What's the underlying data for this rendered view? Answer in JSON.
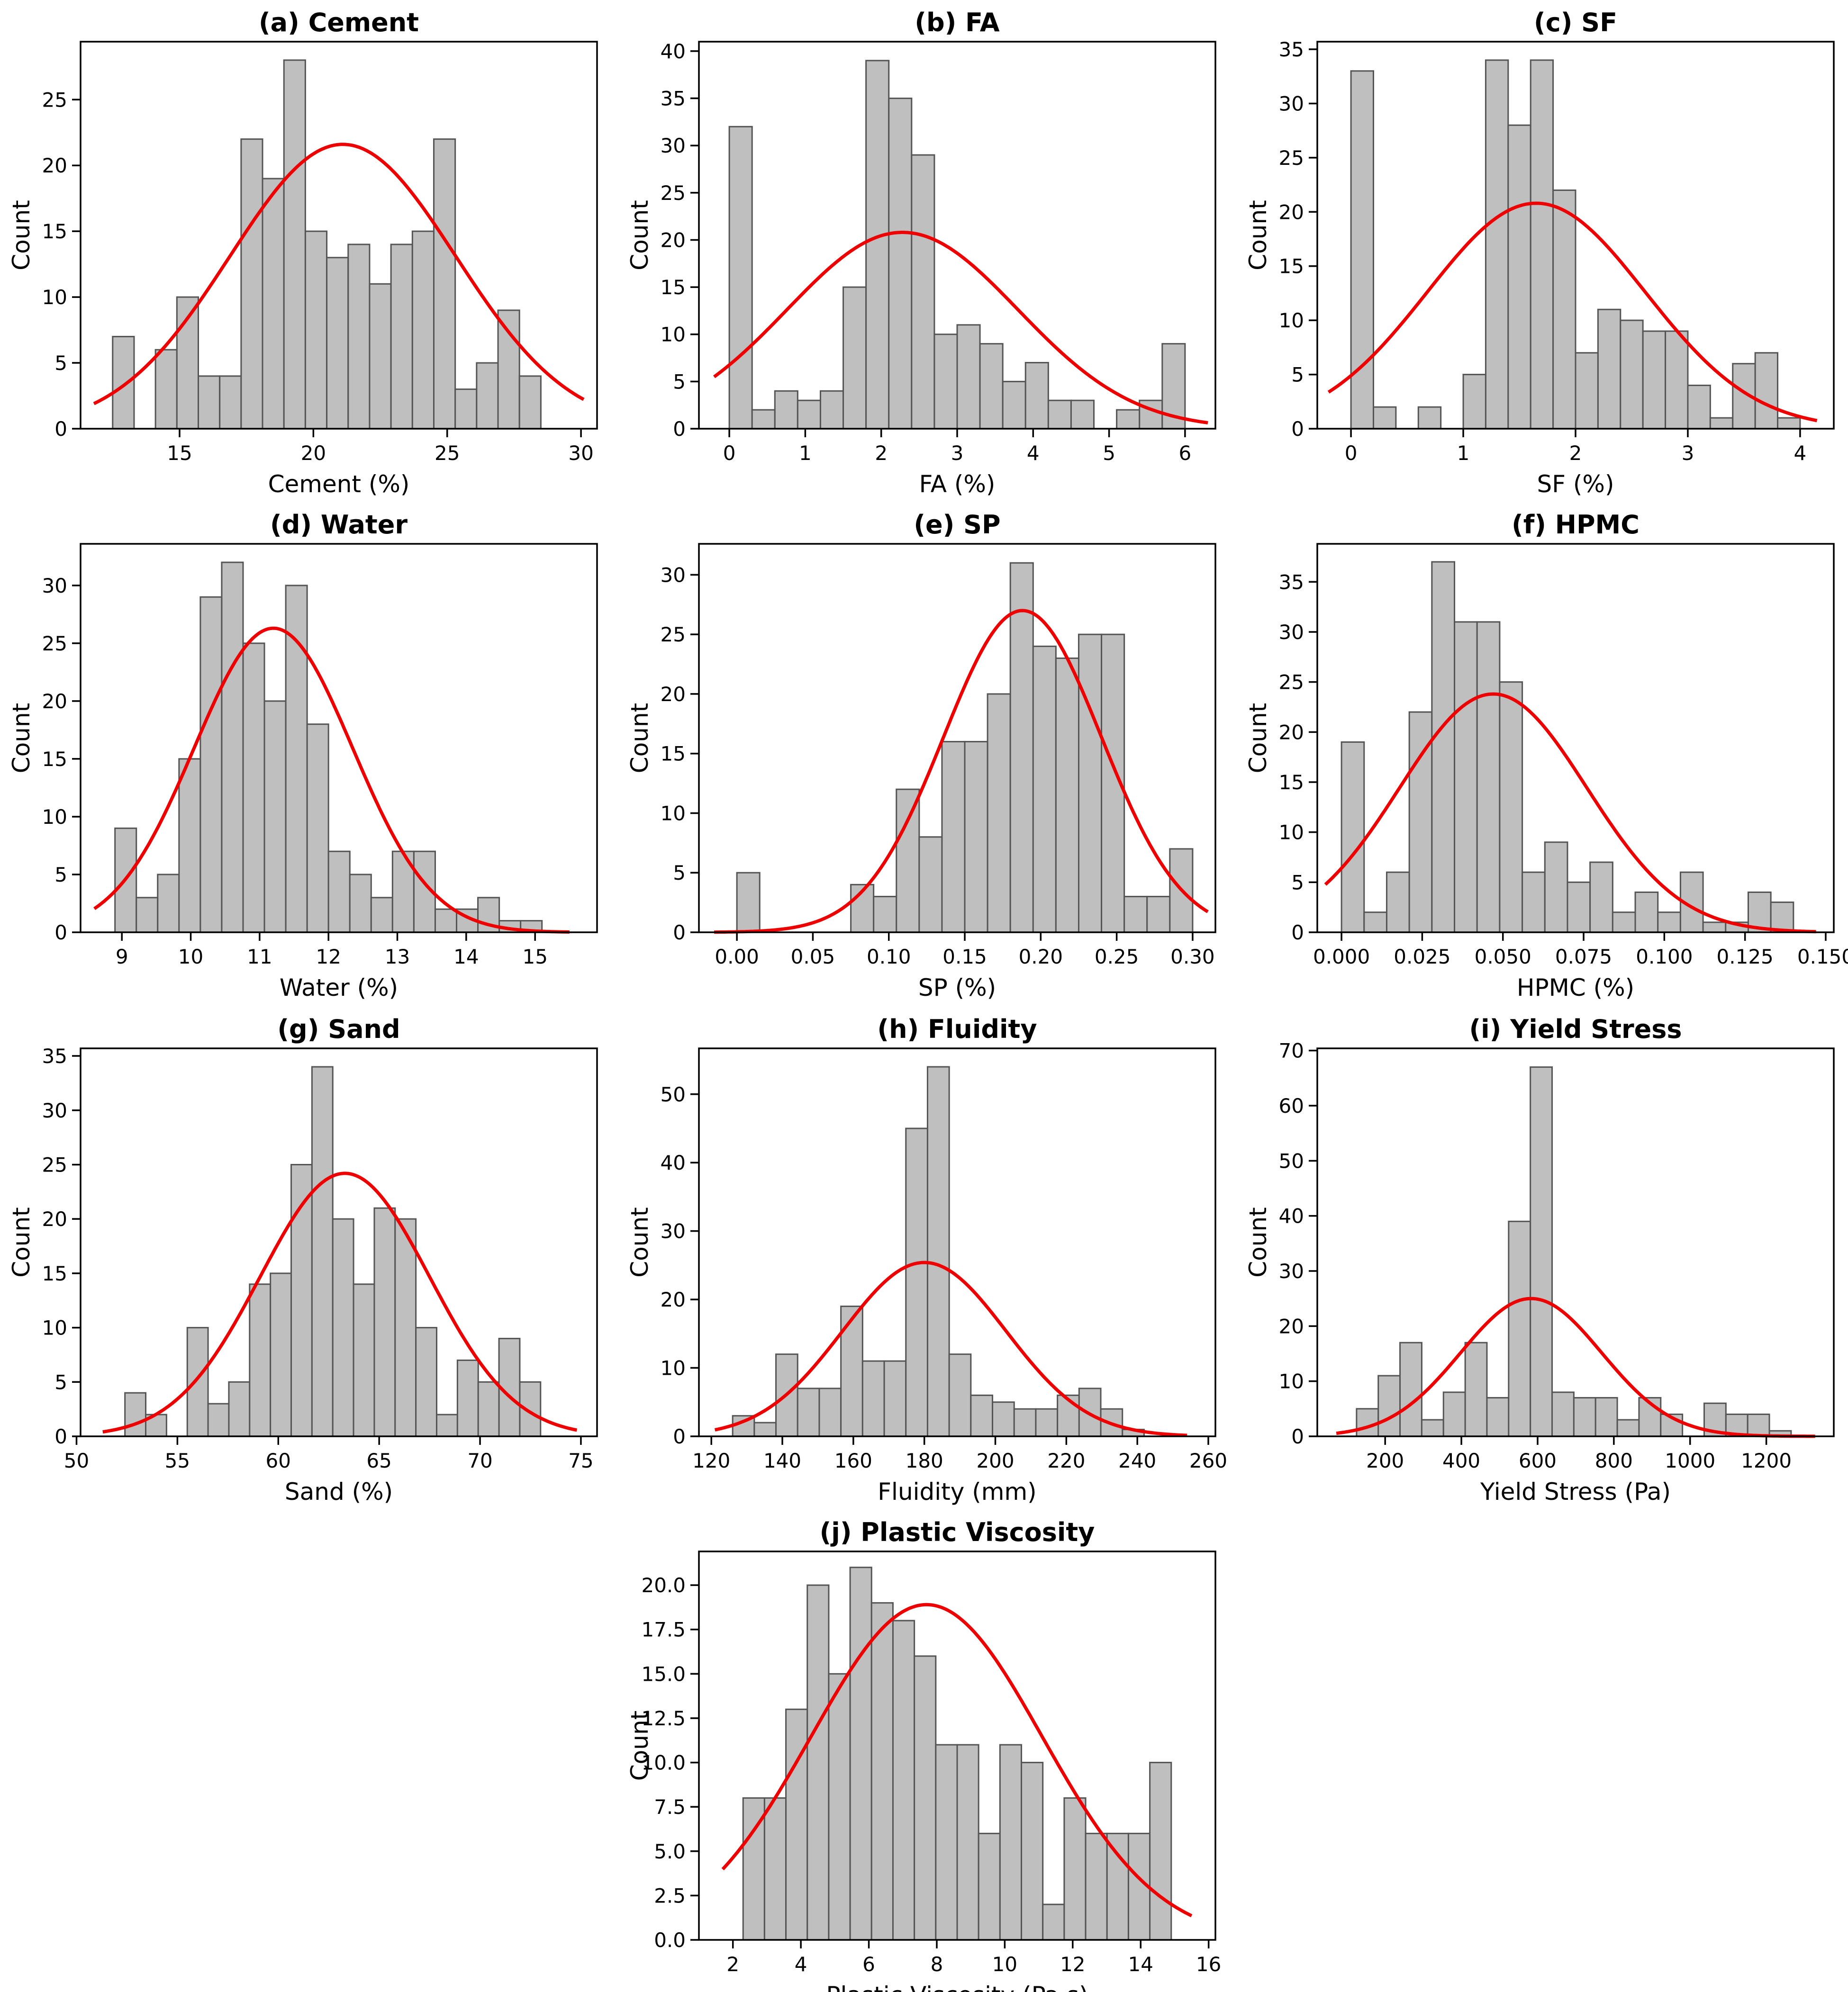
{
  "figure": {
    "colors": {
      "bar_fill": "#bfbfbf",
      "bar_edge": "#555555",
      "curve": "#ee0000",
      "axes": "#000000"
    },
    "ylabel_common": "Count"
  },
  "chart_data": [
    {
      "type": "bar",
      "title": "(a) Cement",
      "xlabel": "Cement (%)",
      "ylabel": "Count",
      "bin_start": 12.5,
      "bin_width": 0.8,
      "counts": [
        7,
        0,
        6,
        10,
        4,
        4,
        22,
        19,
        28,
        15,
        13,
        14,
        11,
        14,
        15,
        22,
        3,
        5,
        9,
        4
      ],
      "xlim": [
        11.3,
        30.6
      ],
      "ylim": [
        0,
        29.4
      ],
      "xticks": [
        15,
        20,
        25,
        30
      ],
      "xtick_labels": [
        "15",
        "20",
        "25",
        "30"
      ],
      "yticks": [
        0,
        5,
        10,
        15,
        20,
        25
      ],
      "ytick_labels": [
        "0",
        "5",
        "10",
        "15",
        "20",
        "25"
      ],
      "fit": {
        "mean": 21.1,
        "sd": 4.22,
        "peak": 21.6,
        "range": [
          11.8,
          30.1
        ]
      }
    },
    {
      "type": "bar",
      "title": "(b) FA",
      "xlabel": "FA (%)",
      "ylabel": "Count",
      "bin_start": 0.0,
      "bin_width": 0.3,
      "counts": [
        32,
        2,
        4,
        3,
        4,
        15,
        39,
        35,
        29,
        10,
        11,
        9,
        5,
        7,
        3,
        3,
        0,
        2,
        3,
        9
      ],
      "xlim": [
        -0.4,
        6.4
      ],
      "ylim": [
        0,
        41
      ],
      "xticks": [
        0,
        1,
        2,
        3,
        4,
        5,
        6
      ],
      "xtick_labels": [
        "0",
        "1",
        "2",
        "3",
        "4",
        "5",
        "6"
      ],
      "yticks": [
        0,
        5,
        10,
        15,
        20,
        25,
        30,
        35,
        40
      ],
      "ytick_labels": [
        "0",
        "5",
        "10",
        "15",
        "20",
        "25",
        "30",
        "35",
        "40"
      ],
      "fit": {
        "mean": 2.28,
        "sd": 1.52,
        "peak": 20.8,
        "range": [
          -0.2,
          6.3
        ]
      }
    },
    {
      "type": "bar",
      "title": "(c) SF",
      "xlabel": "SF (%)",
      "ylabel": "Count",
      "bin_start": 0.0,
      "bin_width": 0.2,
      "counts": [
        33,
        2,
        0,
        2,
        0,
        5,
        34,
        28,
        34,
        22,
        7,
        11,
        10,
        9,
        9,
        4,
        1,
        6,
        7,
        1
      ],
      "xlim": [
        -0.3,
        4.3
      ],
      "ylim": [
        0,
        35.7
      ],
      "xticks": [
        0,
        1,
        2,
        3,
        4
      ],
      "xtick_labels": [
        "0",
        "1",
        "2",
        "3",
        "4"
      ],
      "yticks": [
        0,
        5,
        10,
        15,
        20,
        25,
        30,
        35
      ],
      "ytick_labels": [
        "0",
        "5",
        "10",
        "15",
        "20",
        "25",
        "30",
        "35"
      ],
      "fit": {
        "mean": 1.65,
        "sd": 0.97,
        "peak": 20.8,
        "range": [
          -0.2,
          4.15
        ]
      }
    },
    {
      "type": "bar",
      "title": "(d) Water",
      "xlabel": "Water (%)",
      "ylabel": "Count",
      "bin_start": 8.9,
      "bin_width": 0.31,
      "counts": [
        9,
        3,
        5,
        15,
        29,
        32,
        25,
        20,
        30,
        18,
        7,
        5,
        3,
        7,
        7,
        2,
        2,
        3,
        1,
        1
      ],
      "xlim": [
        8.4,
        15.9
      ],
      "ylim": [
        0,
        33.6
      ],
      "xticks": [
        9,
        10,
        11,
        12,
        13,
        14,
        15
      ],
      "xtick_labels": [
        "9",
        "10",
        "11",
        "12",
        "13",
        "14",
        "15"
      ],
      "yticks": [
        0,
        5,
        10,
        15,
        20,
        25,
        30
      ],
      "ytick_labels": [
        "0",
        "5",
        "10",
        "15",
        "20",
        "25",
        "30"
      ],
      "fit": {
        "mean": 11.2,
        "sd": 1.15,
        "peak": 26.3,
        "range": [
          8.6,
          15.5
        ]
      }
    },
    {
      "type": "bar",
      "title": "(e) SP",
      "xlabel": "SP (%)",
      "ylabel": "Count",
      "bin_start": 0.0,
      "bin_width": 0.015,
      "counts": [
        5,
        0,
        0,
        0,
        0,
        4,
        3,
        12,
        8,
        16,
        16,
        20,
        31,
        24,
        23,
        25,
        25,
        3,
        3,
        7
      ],
      "xlim": [
        -0.025,
        0.315
      ],
      "ylim": [
        0,
        32.6
      ],
      "xticks": [
        0.0,
        0.05,
        0.1,
        0.15,
        0.2,
        0.25,
        0.3
      ],
      "xtick_labels": [
        "0.00",
        "0.05",
        "0.10",
        "0.15",
        "0.20",
        "0.25",
        "0.30"
      ],
      "yticks": [
        0,
        5,
        10,
        15,
        20,
        25,
        30
      ],
      "ytick_labels": [
        "0",
        "5",
        "10",
        "15",
        "20",
        "25",
        "30"
      ],
      "fit": {
        "mean": 0.188,
        "sd": 0.052,
        "peak": 27.0,
        "range": [
          -0.015,
          0.31
        ]
      }
    },
    {
      "type": "bar",
      "title": "(f) HPMC",
      "xlabel": "HPMC (%)",
      "ylabel": "Count",
      "bin_start": 0.0,
      "bin_width": 0.007,
      "counts": [
        19,
        2,
        6,
        22,
        37,
        31,
        31,
        25,
        6,
        9,
        5,
        7,
        2,
        4,
        2,
        6,
        1,
        1,
        4,
        3
      ],
      "xlim": [
        -0.0075,
        0.1525
      ],
      "ylim": [
        0,
        38.8
      ],
      "xticks": [
        0.0,
        0.025,
        0.05,
        0.075,
        0.1,
        0.125,
        0.15
      ],
      "xtick_labels": [
        "0.000",
        "0.025",
        "0.050",
        "0.075",
        "0.100",
        "0.125",
        "0.150"
      ],
      "yticks": [
        0,
        5,
        10,
        15,
        20,
        25,
        30,
        35
      ],
      "ytick_labels": [
        "0",
        "5",
        "10",
        "15",
        "20",
        "25",
        "30",
        "35"
      ],
      "fit": {
        "mean": 0.047,
        "sd": 0.029,
        "peak": 23.8,
        "range": [
          -0.005,
          0.147
        ]
      }
    },
    {
      "type": "bar",
      "title": "(g) Sand",
      "xlabel": "Sand (%)",
      "ylabel": "Count",
      "bin_start": 52.4,
      "bin_width": 1.03,
      "counts": [
        4,
        2,
        0,
        10,
        3,
        5,
        14,
        15,
        25,
        34,
        20,
        14,
        21,
        20,
        10,
        2,
        7,
        5,
        9,
        5
      ],
      "xlim": [
        50.2,
        75.8
      ],
      "ylim": [
        0,
        35.7
      ],
      "xticks": [
        50,
        55,
        60,
        65,
        70,
        75
      ],
      "xtick_labels": [
        "50",
        "55",
        "60",
        "65",
        "70",
        "75"
      ],
      "yticks": [
        0,
        5,
        10,
        15,
        20,
        25,
        30,
        35
      ],
      "ytick_labels": [
        "0",
        "5",
        "10",
        "15",
        "20",
        "25",
        "30",
        "35"
      ],
      "fit": {
        "mean": 63.3,
        "sd": 4.2,
        "peak": 24.2,
        "range": [
          51.3,
          74.8
        ]
      }
    },
    {
      "type": "bar",
      "title": "(h) Fluidity",
      "xlabel": "Fluidity (mm)",
      "ylabel": "Count",
      "bin_start": 126.0,
      "bin_width": 6.1,
      "counts": [
        3,
        2,
        12,
        7,
        7,
        19,
        11,
        11,
        45,
        54,
        12,
        6,
        5,
        4,
        4,
        6,
        7,
        4,
        1,
        0
      ],
      "xlim": [
        116.5,
        262.0
      ],
      "ylim": [
        0,
        56.7
      ],
      "xticks": [
        120,
        140,
        160,
        180,
        200,
        220,
        240,
        260
      ],
      "xtick_labels": [
        "120",
        "140",
        "160",
        "180",
        "200",
        "220",
        "240",
        "260"
      ],
      "yticks": [
        0,
        10,
        20,
        30,
        40,
        50
      ],
      "ytick_labels": [
        "0",
        "10",
        "20",
        "30",
        "40",
        "50"
      ],
      "fit": {
        "mean": 180.0,
        "sd": 23.0,
        "peak": 25.4,
        "range": [
          121.0,
          254.0
        ]
      }
    },
    {
      "type": "bar",
      "title": "(i) Yield Stress",
      "xlabel": "Yield Stress (Pa)",
      "ylabel": "Count",
      "bin_start": 125.0,
      "bin_width": 57.0,
      "counts": [
        5,
        11,
        17,
        3,
        8,
        17,
        7,
        39,
        67,
        8,
        7,
        7,
        3,
        7,
        4,
        0,
        6,
        4,
        4,
        1
      ],
      "xlim": [
        22.0,
        1377.0
      ],
      "ylim": [
        0,
        70.4
      ],
      "xticks": [
        200,
        400,
        600,
        800,
        1000,
        1200
      ],
      "xtick_labels": [
        "200",
        "400",
        "600",
        "800",
        "1000",
        "1200"
      ],
      "yticks": [
        0,
        10,
        20,
        30,
        40,
        50,
        60,
        70
      ],
      "ytick_labels": [
        "0",
        "10",
        "20",
        "30",
        "40",
        "50",
        "60",
        "70"
      ],
      "fit": {
        "mean": 583.0,
        "sd": 185.0,
        "peak": 25.0,
        "range": [
          72.0,
          1328.0
        ]
      }
    },
    {
      "type": "bar",
      "title": "(j) Plastic Viscosity",
      "xlabel": "Plastic Viscosity (Pa·s)",
      "ylabel": "Count",
      "bin_start": 2.3,
      "bin_width": 0.63,
      "counts": [
        8,
        8,
        13,
        20,
        15,
        21,
        19,
        18,
        16,
        11,
        11,
        6,
        11,
        10,
        2,
        8,
        6,
        6,
        6,
        10
      ],
      "xlim": [
        1.0,
        16.2
      ],
      "ylim": [
        0,
        21.9
      ],
      "xticks": [
        2,
        4,
        6,
        8,
        10,
        12,
        14,
        16
      ],
      "xtick_labels": [
        "2",
        "4",
        "6",
        "8",
        "10",
        "12",
        "14",
        "16"
      ],
      "yticks": [
        0,
        2.5,
        5,
        7.5,
        10,
        12.5,
        15,
        17.5,
        20
      ],
      "ytick_labels": [
        "0.0",
        "2.5",
        "5.0",
        "7.5",
        "10.0",
        "12.5",
        "15.0",
        "17.5",
        "20.0"
      ],
      "fit": {
        "mean": 7.7,
        "sd": 3.4,
        "peak": 18.9,
        "range": [
          1.7,
          15.5
        ]
      }
    }
  ]
}
